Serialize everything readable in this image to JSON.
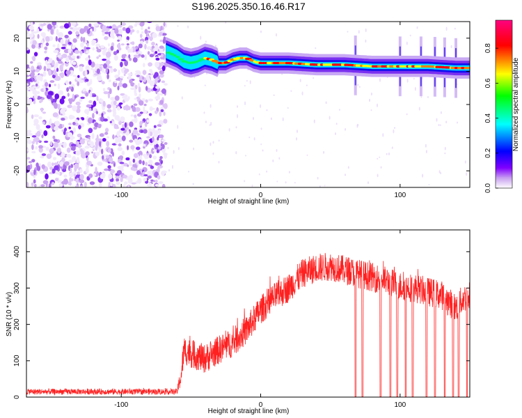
{
  "title": "S196.2025.350.16.46.R17",
  "chart_data": [
    {
      "type": "heatmap",
      "name": "spectrogram",
      "xlabel": "Height of straight line (km)",
      "ylabel": "Frequency (Hz)",
      "xlim": [
        -168,
        150
      ],
      "ylim": [
        -25,
        25
      ],
      "xticks": [
        -100,
        0,
        100
      ],
      "yticks": [
        -20,
        -10,
        0,
        10,
        20
      ],
      "colorbar": {
        "label": "Normalized spectral amplitude",
        "range": [
          0,
          0.96
        ],
        "ticks": [
          0.0,
          0.2,
          0.4,
          0.6,
          0.8
        ],
        "colormap": [
          "#ffffff",
          "#c8a0f0",
          "#8000ff",
          "#0000ff",
          "#00ffff",
          "#00ff00",
          "#ffff00",
          "#ff0000",
          "#ff0080"
        ]
      },
      "noise_region_x": [
        -168,
        -68
      ],
      "band_trace": {
        "x": [
          -68,
          -60,
          -55,
          -50,
          -45,
          -40,
          -35,
          -30,
          -25,
          -20,
          -15,
          -10,
          -5,
          0,
          10,
          20,
          40,
          60,
          80,
          100,
          120,
          140,
          150
        ],
        "freq": [
          16,
          14.5,
          13,
          12.5,
          13,
          14,
          13.5,
          12.5,
          12.5,
          13.5,
          14,
          14,
          13,
          12.5,
          12.5,
          12.5,
          12,
          12,
          11.5,
          11.5,
          11.5,
          11,
          11
        ]
      },
      "spikes_x": [
        68,
        100,
        115,
        125,
        132,
        140
      ]
    },
    {
      "type": "line",
      "name": "snr",
      "xlabel": "Height of straight line (km)",
      "ylabel": "SNR (10 * v/v)",
      "xlim": [
        -168,
        150
      ],
      "ylim": [
        0,
        460
      ],
      "xticks": [
        -100,
        0,
        100
      ],
      "yticks": [
        0,
        100,
        200,
        300,
        400
      ],
      "color": "#ff2020",
      "envelope": {
        "x": [
          -168,
          -60,
          -57,
          -55,
          -50,
          -40,
          -30,
          -20,
          -10,
          0,
          10,
          20,
          30,
          40,
          50,
          60,
          70,
          80,
          90,
          100,
          110,
          120,
          130,
          140,
          145,
          150
        ],
        "mean": [
          15,
          15,
          60,
          130,
          120,
          105,
          130,
          150,
          185,
          240,
          275,
          300,
          340,
          355,
          360,
          350,
          340,
          330,
          320,
          305,
          300,
          290,
          280,
          245,
          270,
          280
        ],
        "spread": [
          8,
          8,
          30,
          40,
          40,
          40,
          40,
          40,
          40,
          40,
          40,
          40,
          40,
          40,
          40,
          40,
          40,
          40,
          40,
          40,
          40,
          40,
          40,
          40,
          40,
          40
        ]
      },
      "dropouts_x": [
        68,
        73,
        86,
        93,
        98,
        104,
        109,
        119,
        125,
        132,
        138,
        142,
        148
      ]
    }
  ]
}
